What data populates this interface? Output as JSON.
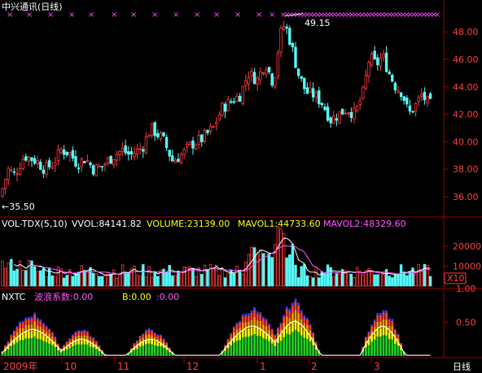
{
  "main_panel": {
    "title": "中兴通讯(日线)",
    "high_label": "49.15",
    "low_label": "←35.50",
    "y_ticks": [
      "48.00",
      "46.00",
      "44.00",
      "42.00",
      "40.00",
      "38.00",
      "36.00"
    ]
  },
  "volume_panel": {
    "name": "VOL-TDX(5,10)",
    "vvol": "VVOL:84141.82",
    "volume": "VOLUME:23139.00",
    "mavol1": "MAVOL1:44733.60",
    "mavol2": "MAVOL2:48329.60",
    "y_ticks": [
      "20000",
      "10000"
    ],
    "unit_badge": "X10"
  },
  "indicator_panel": {
    "name": "NXTC",
    "label1": "波浪系数:0.00",
    "label2": "B:0.00",
    "label3": ":0.00",
    "y_ticks": [
      "1.00",
      "0.50"
    ]
  },
  "time_axis": {
    "labels": [
      "2009年",
      "10",
      "11",
      "12",
      "1",
      "2",
      "3"
    ],
    "period_button": "日线"
  },
  "colors": {
    "up": "#ff3c3c",
    "down": "#54fcfc",
    "grid": "#8b0000",
    "axis_text": "#ff4040",
    "marker": "#ff44ff",
    "white": "#ffffff",
    "yellow": "#ffff00",
    "magenta": "#ff55ff",
    "orange": "#ff9900",
    "green": "#22cc22",
    "blue": "#2244ff"
  }
}
